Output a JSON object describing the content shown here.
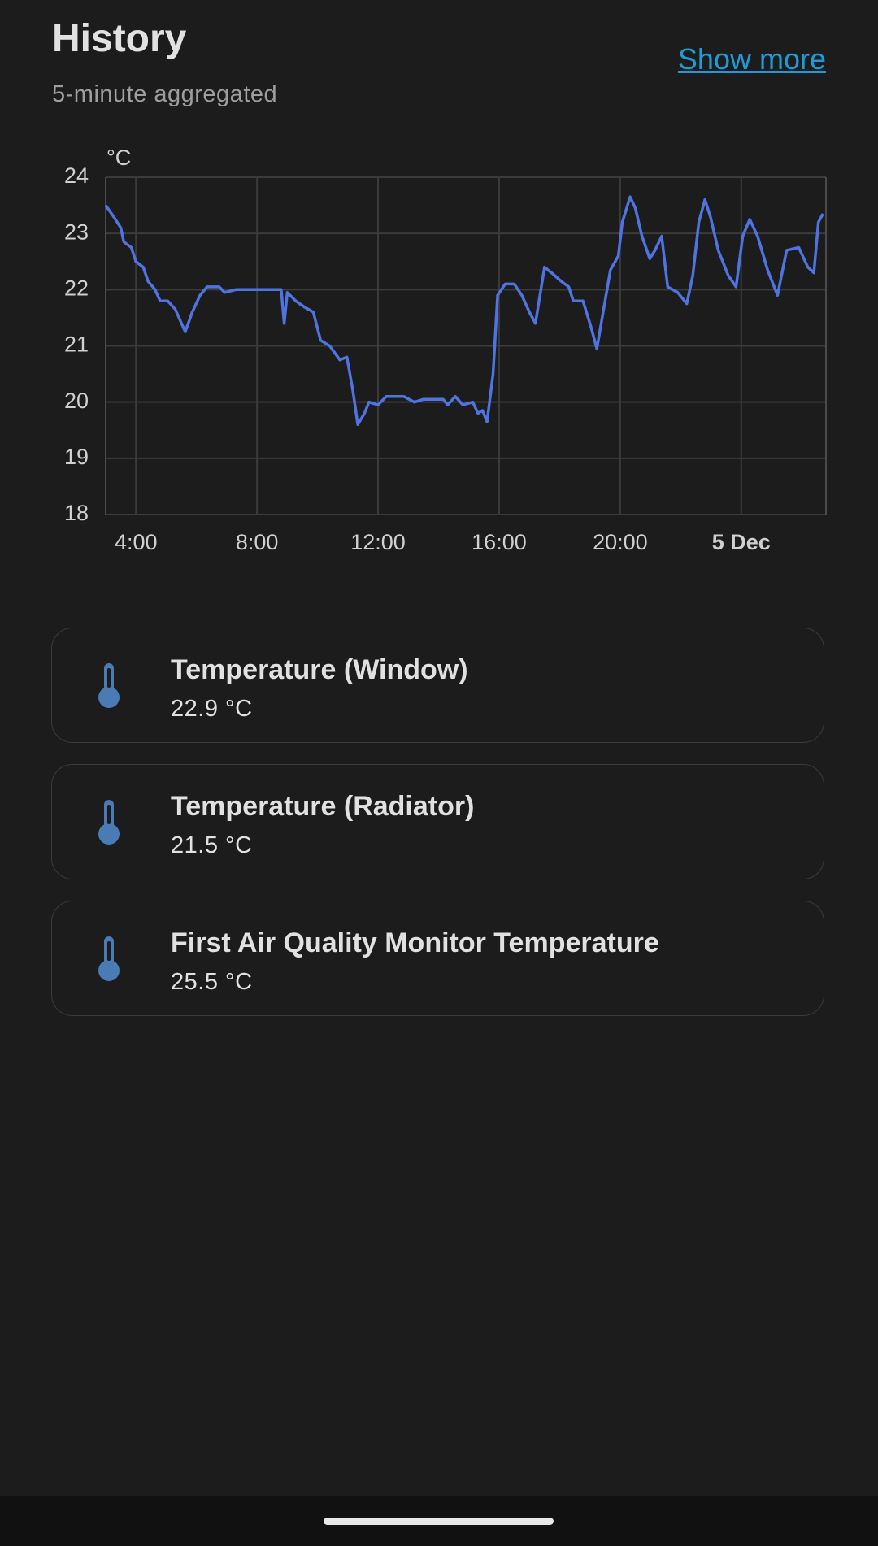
{
  "header": {
    "title": "History",
    "subtitle": "5-minute aggregated",
    "link": "Show more"
  },
  "chart_data": {
    "type": "line",
    "y_unit": "°C",
    "x": [
      3.0,
      3.26,
      3.5,
      3.6,
      3.85,
      4.0,
      4.24,
      4.4,
      4.63,
      4.8,
      5.05,
      5.3,
      5.63,
      5.86,
      6.12,
      6.35,
      6.75,
      6.93,
      7.3,
      8.8,
      8.9,
      9.0,
      9.28,
      9.54,
      9.86,
      10.1,
      10.4,
      10.74,
      10.97,
      11.17,
      11.33,
      11.55,
      11.7,
      12.0,
      12.27,
      12.85,
      13.2,
      13.5,
      14.15,
      14.3,
      14.55,
      14.8,
      15.13,
      15.3,
      15.45,
      15.6,
      15.8,
      15.95,
      16.2,
      16.5,
      16.75,
      17.0,
      17.2,
      17.35,
      17.5,
      17.73,
      18.05,
      18.3,
      18.45,
      18.77,
      19.03,
      19.23,
      19.42,
      19.68,
      19.94,
      20.07,
      20.33,
      20.5,
      20.72,
      20.98,
      21.15,
      21.37,
      21.57,
      21.9,
      22.2,
      22.4,
      22.6,
      22.8,
      22.98,
      23.24,
      23.57,
      23.83,
      24.05,
      24.28,
      24.54,
      24.87,
      25.2,
      25.5,
      25.9,
      26.2,
      26.4,
      26.55,
      26.7
    ],
    "series": [
      {
        "color": "#4f73e0",
        "values": [
          23.5,
          23.3,
          23.1,
          22.85,
          22.75,
          22.5,
          22.4,
          22.15,
          22.0,
          21.8,
          21.8,
          21.65,
          21.25,
          21.6,
          21.9,
          22.05,
          22.05,
          21.95,
          22.0,
          22.0,
          21.4,
          21.95,
          21.8,
          21.7,
          21.6,
          21.1,
          21.0,
          20.75,
          20.8,
          20.2,
          19.6,
          19.8,
          20.0,
          19.95,
          20.1,
          20.1,
          20.0,
          20.05,
          20.05,
          19.95,
          20.1,
          19.95,
          20.0,
          19.8,
          19.85,
          19.65,
          20.5,
          21.9,
          22.1,
          22.1,
          21.9,
          21.6,
          21.4,
          21.9,
          22.4,
          22.3,
          22.15,
          22.05,
          21.8,
          21.8,
          21.35,
          20.95,
          21.55,
          22.35,
          22.6,
          23.2,
          23.65,
          23.45,
          22.95,
          22.55,
          22.7,
          22.95,
          22.05,
          21.95,
          21.75,
          22.25,
          23.2,
          23.6,
          23.3,
          22.7,
          22.25,
          22.05,
          22.95,
          23.25,
          22.95,
          22.35,
          21.9,
          22.7,
          22.75,
          22.4,
          22.3,
          23.2,
          23.35
        ]
      }
    ],
    "xlim": [
      3.0,
      26.8
    ],
    "ylim": [
      18,
      24
    ],
    "xticks": [
      {
        "value": 4,
        "label": "4:00"
      },
      {
        "value": 8,
        "label": "8:00"
      },
      {
        "value": 12,
        "label": "12:00"
      },
      {
        "value": 16,
        "label": "16:00"
      },
      {
        "value": 20,
        "label": "20:00"
      },
      {
        "value": 24,
        "label": "5 Dec"
      }
    ],
    "yticks": [
      18,
      19,
      20,
      21,
      22,
      23,
      24
    ],
    "grid": true
  },
  "entities": [
    {
      "name": "Temperature (Window)",
      "state": "22.9 °C"
    },
    {
      "name": "Temperature (Radiator)",
      "state": "21.5 °C"
    },
    {
      "name": "First Air Quality Monitor Temperature",
      "state": "25.5 °C"
    }
  ]
}
